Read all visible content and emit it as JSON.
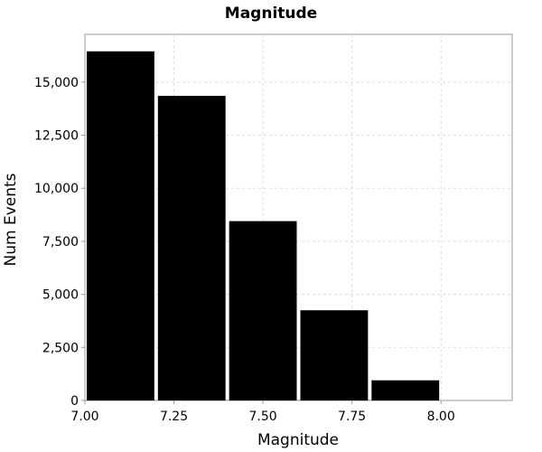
{
  "chart_data": {
    "type": "bar",
    "title": "Magnitude",
    "xlabel": "Magnitude",
    "ylabel": "Num Events",
    "bins": [
      {
        "start": 7.0,
        "end": 7.2,
        "value": 16450
      },
      {
        "start": 7.2,
        "end": 7.4,
        "value": 14350
      },
      {
        "start": 7.4,
        "end": 7.6,
        "value": 8450
      },
      {
        "start": 7.6,
        "end": 7.8,
        "value": 4250
      },
      {
        "start": 7.8,
        "end": 8.0,
        "value": 950
      },
      {
        "start": 8.0,
        "end": 8.2,
        "value": 0
      }
    ],
    "xlim": [
      7.0,
      8.2
    ],
    "ylim": [
      0,
      17250
    ],
    "xticks": [
      {
        "value": 7.0,
        "label": "7.00"
      },
      {
        "value": 7.25,
        "label": "7.25"
      },
      {
        "value": 7.5,
        "label": "7.50"
      },
      {
        "value": 7.75,
        "label": "7.75"
      },
      {
        "value": 8.0,
        "label": "8.00"
      }
    ],
    "yticks": [
      {
        "value": 0,
        "label": "0"
      },
      {
        "value": 2500,
        "label": "2,500"
      },
      {
        "value": 5000,
        "label": "5,000"
      },
      {
        "value": 7500,
        "label": "7,500"
      },
      {
        "value": 10000,
        "label": "10,000"
      },
      {
        "value": 12500,
        "label": "12,500"
      },
      {
        "value": 15000,
        "label": "15,000"
      }
    ],
    "grid": true,
    "bar_color": "#000000"
  }
}
